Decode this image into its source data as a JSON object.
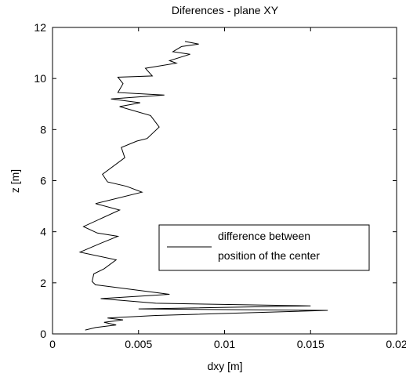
{
  "chart_data": {
    "type": "line",
    "title": "Diferences - plane XY",
    "xlabel": "dxy [m]",
    "ylabel": "z [m]",
    "xlim": [
      0,
      0.02
    ],
    "ylim": [
      0,
      12
    ],
    "grid": false,
    "x_ticks": [
      0,
      0.005,
      0.01,
      0.015,
      0.02
    ],
    "x_tick_labels": [
      "0",
      "0.005",
      "0.01",
      "0.015",
      "0.02"
    ],
    "y_ticks": [
      0,
      2,
      4,
      6,
      8,
      10,
      12
    ],
    "y_tick_labels": [
      "0",
      "2",
      "4",
      "6",
      "8",
      "10",
      "12"
    ],
    "legend": {
      "placement": "center-right",
      "lines": [
        "difference between",
        "position of the center"
      ]
    },
    "series": [
      {
        "color": "#000000",
        "points": [
          [
            0.0019,
            0.15
          ],
          [
            0.0025,
            0.25
          ],
          [
            0.0037,
            0.35
          ],
          [
            0.003,
            0.45
          ],
          [
            0.0041,
            0.55
          ],
          [
            0.0032,
            0.62
          ],
          [
            0.006,
            0.72
          ],
          [
            0.016,
            0.92
          ],
          [
            0.005,
            0.98
          ],
          [
            0.015,
            1.1
          ],
          [
            0.006,
            1.2
          ],
          [
            0.0028,
            1.38
          ],
          [
            0.0068,
            1.55
          ],
          [
            0.0025,
            1.92
          ],
          [
            0.0023,
            2.05
          ],
          [
            0.0024,
            2.35
          ],
          [
            0.003,
            2.55
          ],
          [
            0.0037,
            2.9
          ],
          [
            0.0016,
            3.2
          ],
          [
            0.0027,
            3.52
          ],
          [
            0.0038,
            3.82
          ],
          [
            0.0026,
            3.95
          ],
          [
            0.0018,
            4.2
          ],
          [
            0.0039,
            4.85
          ],
          [
            0.0025,
            5.1
          ],
          [
            0.0052,
            5.55
          ],
          [
            0.0043,
            5.78
          ],
          [
            0.0032,
            5.95
          ],
          [
            0.0029,
            6.25
          ],
          [
            0.0042,
            6.9
          ],
          [
            0.004,
            7.3
          ],
          [
            0.0049,
            7.55
          ],
          [
            0.0055,
            7.65
          ],
          [
            0.0062,
            8.1
          ],
          [
            0.0057,
            8.55
          ],
          [
            0.0039,
            8.9
          ],
          [
            0.0051,
            9.05
          ],
          [
            0.0034,
            9.2
          ],
          [
            0.0065,
            9.35
          ],
          [
            0.0038,
            9.45
          ],
          [
            0.0041,
            9.8
          ],
          [
            0.0038,
            10.05
          ],
          [
            0.0058,
            10.1
          ],
          [
            0.0054,
            10.4
          ],
          [
            0.0072,
            10.6
          ],
          [
            0.0068,
            10.7
          ],
          [
            0.008,
            10.95
          ],
          [
            0.007,
            11.05
          ],
          [
            0.0075,
            11.25
          ],
          [
            0.0085,
            11.35
          ],
          [
            0.0077,
            11.45
          ]
        ]
      }
    ]
  }
}
